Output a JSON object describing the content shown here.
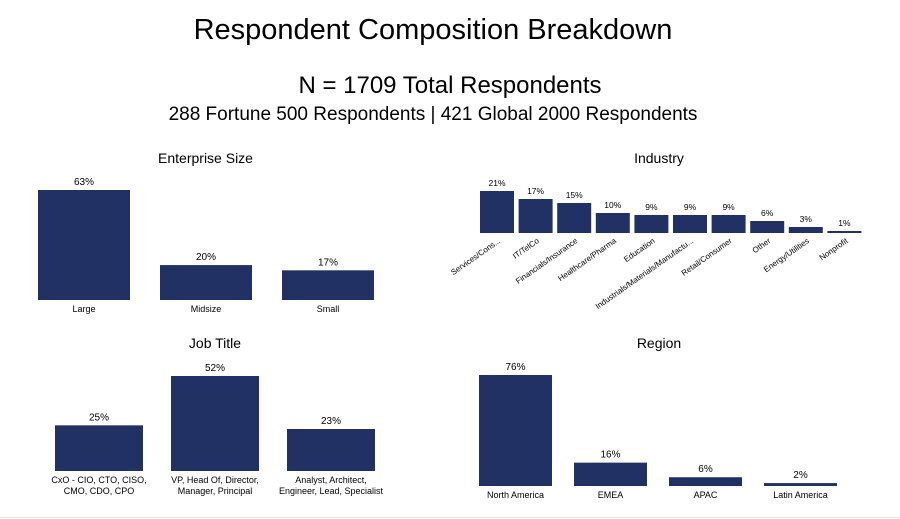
{
  "header": {
    "title": "Respondent Composition Breakdown",
    "subtitle": "N = 1709 Total Respondents",
    "subtitle2": "288 Fortune 500 Respondents | 421 Global 2000 Respondents"
  },
  "colors": {
    "bar": "#223163"
  },
  "chart_data": [
    {
      "type": "bar",
      "title": "Enterprise Size",
      "categories": [
        "Large",
        "Midsize",
        "Small"
      ],
      "values": [
        63,
        20,
        17
      ],
      "value_labels": [
        "63%",
        "20%",
        "17%"
      ],
      "ylim": [
        0,
        63
      ]
    },
    {
      "type": "bar",
      "title": "Industry",
      "categories": [
        "Services/Cons...",
        "IT/TelCo",
        "Financials/Insurance",
        "Healthcare/Pharma",
        "Education",
        "Industrials/Materials/Manufactu...",
        "Retail/Consumer",
        "Other",
        "Energy/Utilities",
        "Nonprofit"
      ],
      "values": [
        21,
        17,
        15,
        10,
        9,
        9,
        9,
        6,
        3,
        1
      ],
      "value_labels": [
        "21%",
        "17%",
        "15%",
        "10%",
        "9%",
        "9%",
        "9%",
        "6%",
        "3%",
        "1%"
      ],
      "ylim": [
        0,
        21
      ]
    },
    {
      "type": "bar",
      "title": "Job Title",
      "categories": [
        [
          "CxO - CIO, CTO, CISO,",
          "CMO, CDO, CPO"
        ],
        [
          "VP, Head Of, Director,",
          "Manager, Principal"
        ],
        [
          "Analyst, Architect,",
          "Engineer, Lead, Specialist"
        ]
      ],
      "values": [
        25,
        52,
        23
      ],
      "value_labels": [
        "25%",
        "52%",
        "23%"
      ],
      "ylim": [
        0,
        52
      ]
    },
    {
      "type": "bar",
      "title": "Region",
      "categories": [
        "North America",
        "EMEA",
        "APAC",
        "Latin America"
      ],
      "values": [
        76,
        16,
        6,
        2
      ],
      "value_labels": [
        "76%",
        "16%",
        "6%",
        "2%"
      ],
      "ylim": [
        0,
        76
      ]
    }
  ]
}
